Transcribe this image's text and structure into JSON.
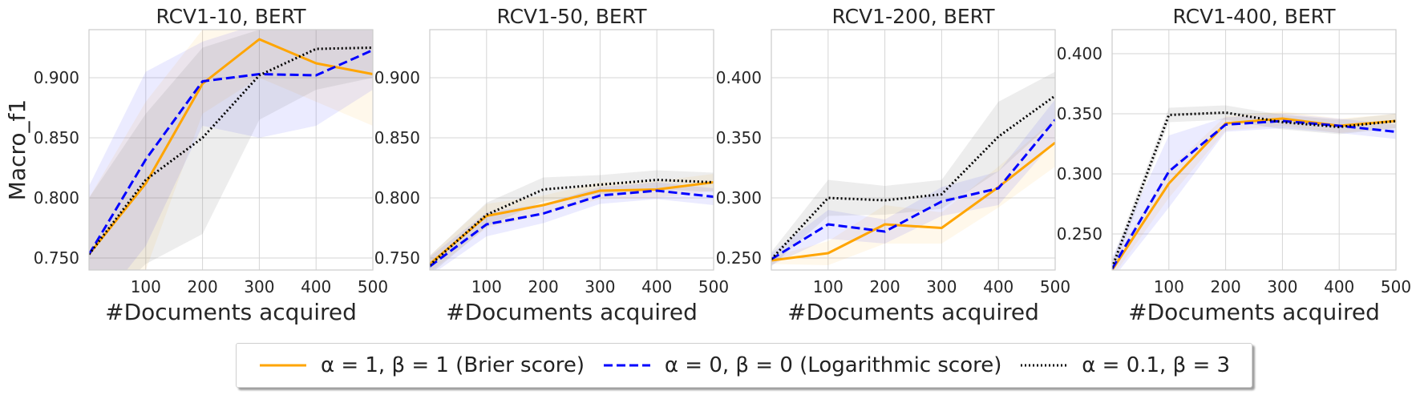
{
  "figure": {
    "ylabel": "Macro_f1",
    "xlabel": "#Documents acquired"
  },
  "legend": [
    {
      "label": "α = 1, β = 1 (Brier score)",
      "color": "#ffa500",
      "dash": "solid"
    },
    {
      "label": "α = 0, β = 0 (Logarithmic score)",
      "color": "#0000ff",
      "dash": "dashed"
    },
    {
      "label": "α = 0.1, β = 3",
      "color": "#000000",
      "dash": "dotted"
    }
  ],
  "chart_data": [
    {
      "type": "line",
      "title": "RCV1-10, BERT",
      "xlabel": "#Documents acquired",
      "ylabel": "Macro_f1",
      "xlim": [
        0,
        500
      ],
      "ylim": [
        0.74,
        0.94
      ],
      "xticks": [
        100,
        200,
        300,
        400,
        500
      ],
      "yticks": [
        0.75,
        0.8,
        0.85,
        0.9
      ],
      "ytick_labels": [
        "0.750",
        "0.800",
        "0.850",
        "0.900"
      ],
      "x": [
        0,
        100,
        200,
        300,
        400,
        500
      ],
      "series": [
        {
          "color": "#ffa500",
          "values": [
            0.753,
            0.812,
            0.895,
            0.932,
            0.912,
            0.903
          ],
          "lower": [
            0.7,
            0.74,
            0.87,
            0.9,
            0.88,
            0.86
          ],
          "upper": [
            0.8,
            0.88,
            0.94,
            0.96,
            0.95,
            0.94
          ]
        },
        {
          "color": "#0000ff",
          "values": [
            0.753,
            0.832,
            0.897,
            0.903,
            0.902,
            0.923
          ],
          "lower": [
            0.7,
            0.76,
            0.86,
            0.85,
            0.86,
            0.89
          ],
          "upper": [
            0.81,
            0.905,
            0.93,
            0.945,
            0.95,
            0.95
          ]
        },
        {
          "color": "#000000",
          "values": [
            0.753,
            0.815,
            0.85,
            0.902,
            0.924,
            0.925
          ],
          "lower": [
            0.7,
            0.745,
            0.77,
            0.865,
            0.89,
            0.9
          ],
          "upper": [
            0.8,
            0.87,
            0.925,
            0.94,
            0.955,
            0.955
          ]
        }
      ]
    },
    {
      "type": "line",
      "title": "RCV1-50, BERT",
      "xlabel": "#Documents acquired",
      "ylabel": "",
      "xlim": [
        0,
        500
      ],
      "ylim": [
        0.74,
        0.94
      ],
      "xticks": [
        100,
        200,
        300,
        400,
        500
      ],
      "yticks": [
        0.75,
        0.8,
        0.85,
        0.9
      ],
      "ytick_labels": [
        "0.750",
        "0.800",
        "0.850",
        "0.900"
      ],
      "x": [
        0,
        100,
        200,
        300,
        400,
        500
      ],
      "series": [
        {
          "color": "#ffa500",
          "values": [
            0.745,
            0.785,
            0.794,
            0.806,
            0.807,
            0.813
          ],
          "lower": [
            0.738,
            0.775,
            0.786,
            0.799,
            0.8,
            0.806
          ],
          "upper": [
            0.752,
            0.795,
            0.802,
            0.813,
            0.814,
            0.82
          ]
        },
        {
          "color": "#0000ff",
          "values": [
            0.743,
            0.778,
            0.787,
            0.802,
            0.806,
            0.801
          ],
          "lower": [
            0.735,
            0.768,
            0.779,
            0.795,
            0.799,
            0.794
          ],
          "upper": [
            0.751,
            0.788,
            0.795,
            0.809,
            0.813,
            0.808
          ]
        },
        {
          "color": "#000000",
          "values": [
            0.744,
            0.786,
            0.807,
            0.811,
            0.815,
            0.813
          ],
          "lower": [
            0.736,
            0.776,
            0.797,
            0.803,
            0.807,
            0.805
          ],
          "upper": [
            0.752,
            0.796,
            0.817,
            0.819,
            0.823,
            0.821
          ]
        }
      ]
    },
    {
      "type": "line",
      "title": "RCV1-200, BERT",
      "xlabel": "#Documents acquired",
      "ylabel": "",
      "xlim": [
        0,
        500
      ],
      "ylim": [
        0.24,
        0.44
      ],
      "xticks": [
        100,
        200,
        300,
        400,
        500
      ],
      "yticks": [
        0.25,
        0.3,
        0.35,
        0.4
      ],
      "ytick_labels": [
        "0.250",
        "0.300",
        "0.350",
        "0.400"
      ],
      "x": [
        0,
        100,
        200,
        300,
        400,
        500
      ],
      "series": [
        {
          "color": "#ffa500",
          "values": [
            0.248,
            0.254,
            0.278,
            0.275,
            0.309,
            0.346
          ],
          "lower": [
            0.245,
            0.244,
            0.262,
            0.262,
            0.292,
            0.326
          ],
          "upper": [
            0.251,
            0.264,
            0.294,
            0.288,
            0.326,
            0.366
          ]
        },
        {
          "color": "#0000ff",
          "values": [
            0.249,
            0.278,
            0.272,
            0.297,
            0.308,
            0.365
          ],
          "lower": [
            0.244,
            0.266,
            0.262,
            0.285,
            0.294,
            0.348
          ],
          "upper": [
            0.254,
            0.29,
            0.282,
            0.309,
            0.322,
            0.382
          ]
        },
        {
          "color": "#000000",
          "values": [
            0.249,
            0.3,
            0.298,
            0.303,
            0.351,
            0.385
          ],
          "lower": [
            0.243,
            0.285,
            0.286,
            0.291,
            0.322,
            0.365
          ],
          "upper": [
            0.255,
            0.315,
            0.31,
            0.315,
            0.38,
            0.405
          ]
        }
      ]
    },
    {
      "type": "line",
      "title": "RCV1-400, BERT",
      "xlabel": "#Documents acquired",
      "ylabel": "",
      "xlim": [
        0,
        500
      ],
      "ylim": [
        0.22,
        0.42
      ],
      "xticks": [
        100,
        200,
        300,
        400,
        500
      ],
      "yticks": [
        0.25,
        0.3,
        0.35,
        0.4
      ],
      "ytick_labels": [
        "0.250",
        "0.300",
        "0.350",
        "0.400"
      ],
      "x": [
        0,
        100,
        200,
        300,
        400,
        500
      ],
      "series": [
        {
          "color": "#ffa500",
          "values": [
            0.22,
            0.292,
            0.342,
            0.346,
            0.34,
            0.344
          ],
          "lower": [
            0.214,
            0.28,
            0.336,
            0.34,
            0.334,
            0.338
          ],
          "upper": [
            0.226,
            0.304,
            0.348,
            0.352,
            0.346,
            0.35
          ]
        },
        {
          "color": "#0000ff",
          "values": [
            0.221,
            0.302,
            0.341,
            0.344,
            0.34,
            0.335
          ],
          "lower": [
            0.212,
            0.272,
            0.335,
            0.338,
            0.334,
            0.329
          ],
          "upper": [
            0.23,
            0.332,
            0.347,
            0.35,
            0.346,
            0.341
          ]
        },
        {
          "color": "#000000",
          "values": [
            0.222,
            0.349,
            0.351,
            0.343,
            0.339,
            0.344
          ],
          "lower": [
            0.216,
            0.343,
            0.345,
            0.337,
            0.333,
            0.338
          ],
          "upper": [
            0.228,
            0.355,
            0.357,
            0.349,
            0.345,
            0.35
          ]
        }
      ]
    }
  ]
}
